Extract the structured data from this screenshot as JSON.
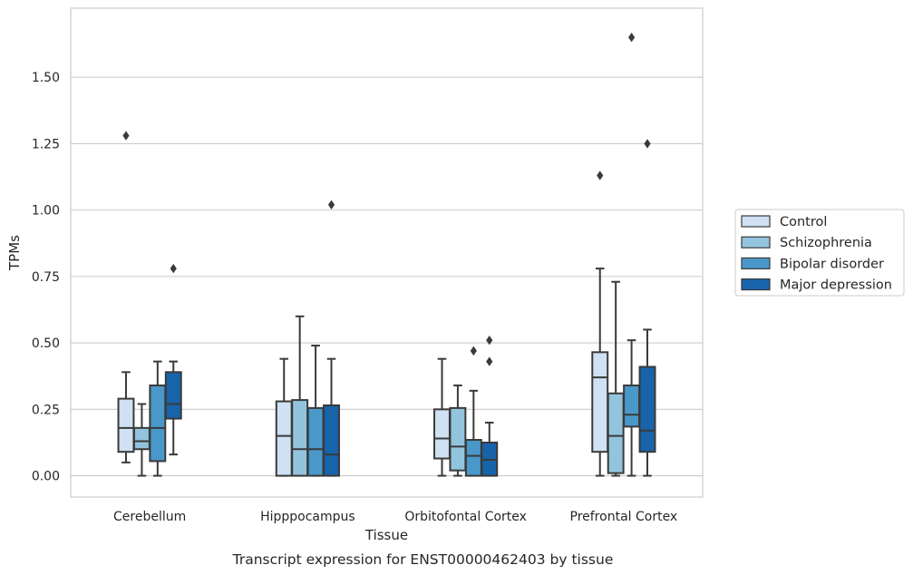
{
  "caption": "Transcript expression for ENST00000462403 by tissue",
  "chart_data": {
    "type": "box",
    "xlabel": "Tissue",
    "ylabel": "TPMs",
    "ylim": [
      -0.08,
      1.76
    ],
    "yticks": [
      "0.00",
      "0.25",
      "0.50",
      "0.75",
      "1.00",
      "1.25",
      "1.50"
    ],
    "ytick_values": [
      0,
      0.25,
      0.5,
      0.75,
      1.0,
      1.25,
      1.5
    ],
    "grid": "horizontal",
    "legend_position": "right",
    "categories": [
      "Cerebellum",
      "Hipppocampus",
      "Orbitofontal Cortex",
      "Prefrontal Cortex"
    ],
    "series": [
      {
        "name": "Control",
        "color": "#cfe1f2",
        "boxes": [
          {
            "whislo": 0.05,
            "q1": 0.09,
            "med": 0.18,
            "q3": 0.29,
            "whishi": 0.39,
            "fliers": [
              1.28
            ]
          },
          {
            "whislo": 0.0,
            "q1": 0.0,
            "med": 0.15,
            "q3": 0.28,
            "whishi": 0.44,
            "fliers": []
          },
          {
            "whislo": 0.0,
            "q1": 0.065,
            "med": 0.14,
            "q3": 0.25,
            "whishi": 0.44,
            "fliers": []
          },
          {
            "whislo": 0.0,
            "q1": 0.09,
            "med": 0.37,
            "q3": 0.465,
            "whishi": 0.78,
            "fliers": [
              1.13
            ]
          }
        ]
      },
      {
        "name": "Schizophrenia",
        "color": "#93c4de",
        "boxes": [
          {
            "whislo": 0.0,
            "q1": 0.1,
            "med": 0.13,
            "q3": 0.18,
            "whishi": 0.27,
            "fliers": []
          },
          {
            "whislo": 0.0,
            "q1": 0.0,
            "med": 0.1,
            "q3": 0.285,
            "whishi": 0.6,
            "fliers": []
          },
          {
            "whislo": 0.0,
            "q1": 0.02,
            "med": 0.11,
            "q3": 0.255,
            "whishi": 0.34,
            "fliers": []
          },
          {
            "whislo": 0.0,
            "q1": 0.01,
            "med": 0.15,
            "q3": 0.31,
            "whishi": 0.73,
            "fliers": []
          }
        ]
      },
      {
        "name": "Bipolar disorder",
        "color": "#4a98c9",
        "boxes": [
          {
            "whislo": 0.0,
            "q1": 0.055,
            "med": 0.18,
            "q3": 0.34,
            "whishi": 0.43,
            "fliers": []
          },
          {
            "whislo": 0.0,
            "q1": 0.0,
            "med": 0.1,
            "q3": 0.255,
            "whishi": 0.49,
            "fliers": []
          },
          {
            "whislo": 0.0,
            "q1": 0.0,
            "med": 0.075,
            "q3": 0.135,
            "whishi": 0.32,
            "fliers": [
              0.47
            ]
          },
          {
            "whislo": 0.0,
            "q1": 0.185,
            "med": 0.23,
            "q3": 0.34,
            "whishi": 0.51,
            "fliers": [
              1.65
            ]
          }
        ]
      },
      {
        "name": "Major depression",
        "color": "#1764ab",
        "boxes": [
          {
            "whislo": 0.08,
            "q1": 0.215,
            "med": 0.27,
            "q3": 0.39,
            "whishi": 0.43,
            "fliers": [
              0.78
            ]
          },
          {
            "whislo": 0.0,
            "q1": 0.0,
            "med": 0.08,
            "q3": 0.265,
            "whishi": 0.44,
            "fliers": [
              1.02
            ]
          },
          {
            "whislo": 0.0,
            "q1": 0.0,
            "med": 0.06,
            "q3": 0.125,
            "whishi": 0.2,
            "fliers": [
              0.43,
              0.51
            ]
          },
          {
            "whislo": 0.0,
            "q1": 0.09,
            "med": 0.17,
            "q3": 0.41,
            "whishi": 0.55,
            "fliers": [
              1.25
            ]
          }
        ]
      }
    ]
  }
}
